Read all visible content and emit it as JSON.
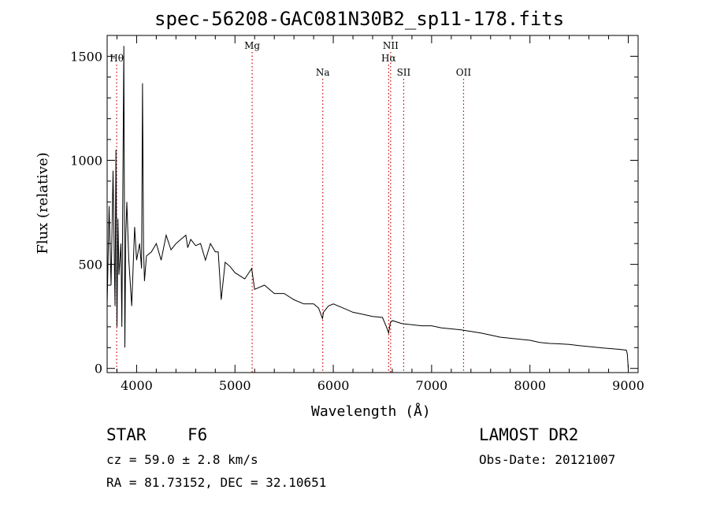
{
  "chart_data": {
    "type": "line",
    "title": "spec-56208-GAC081N30B2_sp11-178.fits",
    "xlabel": "Wavelength (Å)",
    "ylabel": "Flux (relative)",
    "xlim": [
      3700,
      9100
    ],
    "ylim": [
      -20,
      1600
    ],
    "x_ticks": [
      4000,
      5000,
      6000,
      7000,
      8000,
      9000
    ],
    "y_ticks": [
      0,
      500,
      1000,
      1500
    ],
    "grid": false,
    "series": [
      {
        "x": [
          3700,
          3720,
          3740,
          3760,
          3780,
          3790,
          3800,
          3810,
          3820,
          3840,
          3850,
          3860,
          3870,
          3880,
          3890,
          3900,
          3920,
          3950,
          3980,
          4000,
          4030,
          4050,
          4060,
          4070,
          4080,
          4100,
          4150,
          4200,
          4250,
          4300,
          4350,
          4400,
          4450,
          4500,
          4520,
          4550,
          4600,
          4650,
          4700,
          4750,
          4800,
          4830,
          4860,
          4900,
          4950,
          5000,
          5100,
          5170,
          5200,
          5300,
          5400,
          5500,
          5600,
          5700,
          5800,
          5850,
          5890,
          5900,
          5950,
          6000,
          6100,
          6200,
          6300,
          6400,
          6500,
          6540,
          6563,
          6580,
          6600,
          6700,
          6800,
          6900,
          7000,
          7100,
          7200,
          7300,
          7400,
          7500,
          7600,
          7700,
          7800,
          7900,
          8000,
          8100,
          8200,
          8300,
          8400,
          8500,
          8600,
          8700,
          8800,
          8900,
          8980,
          8990,
          9000
        ],
        "y": [
          300,
          780,
          400,
          950,
          300,
          1050,
          200,
          720,
          450,
          600,
          200,
          900,
          1550,
          100,
          650,
          800,
          520,
          300,
          680,
          520,
          600,
          480,
          1370,
          580,
          420,
          540,
          560,
          600,
          520,
          640,
          570,
          600,
          620,
          640,
          580,
          620,
          590,
          600,
          520,
          600,
          560,
          560,
          330,
          510,
          490,
          460,
          430,
          480,
          380,
          400,
          360,
          360,
          330,
          310,
          310,
          290,
          240,
          270,
          300,
          310,
          290,
          270,
          260,
          250,
          245,
          200,
          170,
          220,
          230,
          215,
          210,
          205,
          205,
          195,
          190,
          185,
          178,
          170,
          160,
          150,
          145,
          140,
          135,
          125,
          120,
          118,
          115,
          110,
          105,
          100,
          96,
          92,
          88,
          70,
          0
        ]
      }
    ],
    "annotations": [
      {
        "label": "Hθ",
        "x": 3797,
        "row": 1
      },
      {
        "label": "Mg",
        "x": 5175,
        "row": 0
      },
      {
        "label": "Na",
        "x": 5893,
        "row": 2
      },
      {
        "label": "NII",
        "x": 6583,
        "row": 0
      },
      {
        "label": "Hα",
        "x": 6563,
        "row": 1
      },
      {
        "label": "SII",
        "x": 6716,
        "row": 2
      },
      {
        "label": "OII",
        "x": 7325,
        "row": 2
      }
    ],
    "line_color": "#000000",
    "marker_line_color": "#cc0000"
  },
  "info": {
    "class": "STAR",
    "subclass": "F6",
    "survey": "LAMOST DR2",
    "cz": "cz = 59.0 ± 2.8 km/s",
    "obs_date": "Obs-Date: 20121007",
    "coords": "RA =  81.73152, DEC =  32.10651"
  }
}
